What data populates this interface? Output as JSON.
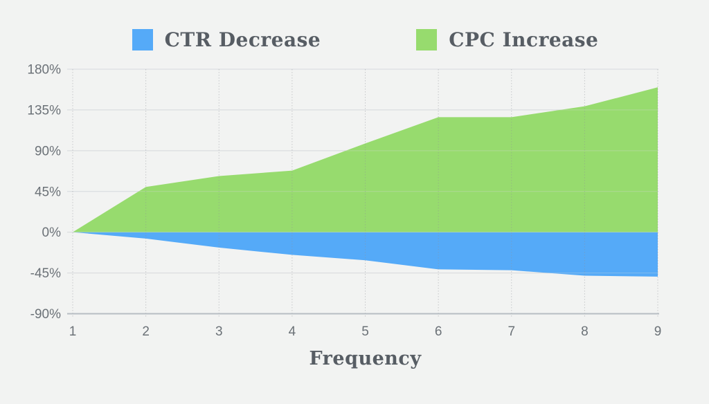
{
  "legend": {
    "items": [
      {
        "id": "ctr",
        "label": "CTR Decrease",
        "color": "#55AAF8"
      },
      {
        "id": "cpc",
        "label": "CPC Increase",
        "color": "#97DB6E"
      }
    ]
  },
  "chart_data": {
    "type": "area",
    "x": [
      1,
      2,
      3,
      4,
      5,
      6,
      7,
      8,
      9
    ],
    "x_labels": [
      "1",
      "2",
      "3",
      "4",
      "5",
      "6",
      "7",
      "8",
      "9"
    ],
    "series": [
      {
        "name": "CTR Decrease",
        "color": "#55AAF8",
        "values": [
          0,
          -7,
          -17,
          -25,
          -31,
          -41,
          -42,
          -48,
          -49
        ]
      },
      {
        "name": "CPC Increase",
        "color": "#97DB6E",
        "values": [
          0,
          50,
          62,
          68,
          98,
          127,
          127,
          139,
          160
        ]
      }
    ],
    "title": "",
    "xlabel": "Frequency",
    "ylabel": "",
    "ylim": [
      -90,
      180
    ],
    "ytick_step": 45,
    "ytick_labels": [
      "180%",
      "135%",
      "90%",
      "45%",
      "0%",
      "-45%",
      "-90%"
    ],
    "grid": true,
    "legend_position": "top",
    "background": "#f2f3f2",
    "grid_color": "#d7dadd",
    "vgrid_color": "#8d9296",
    "axis_color": "#b7bdc3",
    "tick_text_color": "#6b7177",
    "label_text_color": "#575d64"
  }
}
